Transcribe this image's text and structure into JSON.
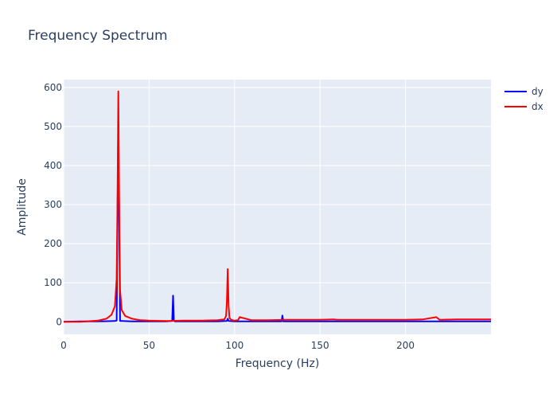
{
  "chart_data": {
    "type": "line",
    "title": "Frequency Spectrum",
    "xlabel": "Frequency (Hz)",
    "ylabel": "Amplitude",
    "xlim": [
      0,
      250
    ],
    "ylim": [
      -32,
      620
    ],
    "x_ticks": [
      0,
      50,
      100,
      150,
      200
    ],
    "y_ticks": [
      0,
      100,
      200,
      300,
      400,
      500,
      600
    ],
    "grid": true,
    "legend_position": "top-right",
    "plot_background": "#e5ecf6",
    "grid_color": "#ffffff",
    "series": [
      {
        "name": "dy",
        "color": "#0000ff",
        "x": [
          0,
          10,
          20,
          30,
          31,
          32,
          33,
          34,
          40,
          50,
          60,
          63.5,
          64,
          64.5,
          65,
          70,
          80,
          90,
          95.5,
          96,
          96.5,
          100,
          110,
          120,
          127.5,
          128,
          128.5,
          130,
          140,
          150,
          160,
          170,
          180,
          190,
          200,
          210,
          220,
          230,
          240,
          250
        ],
        "values": [
          0,
          1,
          1,
          2,
          3,
          510,
          2,
          2,
          1,
          1,
          1,
          2,
          67,
          3,
          1,
          1,
          1,
          1,
          2,
          8,
          2,
          1,
          1,
          1,
          1,
          16,
          1,
          1,
          1,
          1,
          1,
          1,
          1,
          1,
          1,
          1,
          1,
          1,
          1,
          1
        ]
      },
      {
        "name": "dx",
        "color": "#ff0000",
        "x": [
          0,
          10,
          20,
          25,
          28,
          30,
          31,
          31.5,
          32,
          32.5,
          33,
          34,
          36,
          40,
          45,
          50,
          60,
          70,
          80,
          90,
          94,
          95,
          95.5,
          96,
          96.5,
          97,
          98,
          100,
          102,
          103,
          110,
          120,
          130,
          140,
          150,
          158,
          160,
          170,
          180,
          190,
          200,
          210,
          218,
          220,
          230,
          240,
          250
        ],
        "values": [
          0,
          0,
          3,
          8,
          18,
          40,
          110,
          320,
          590,
          300,
          80,
          30,
          15,
          8,
          4,
          3,
          2,
          3,
          3,
          4,
          6,
          15,
          50,
          135,
          40,
          10,
          5,
          3,
          4,
          12,
          4,
          4,
          5,
          5,
          5,
          6,
          5,
          5,
          5,
          5,
          5,
          6,
          12,
          5,
          6,
          6,
          6
        ]
      }
    ]
  }
}
